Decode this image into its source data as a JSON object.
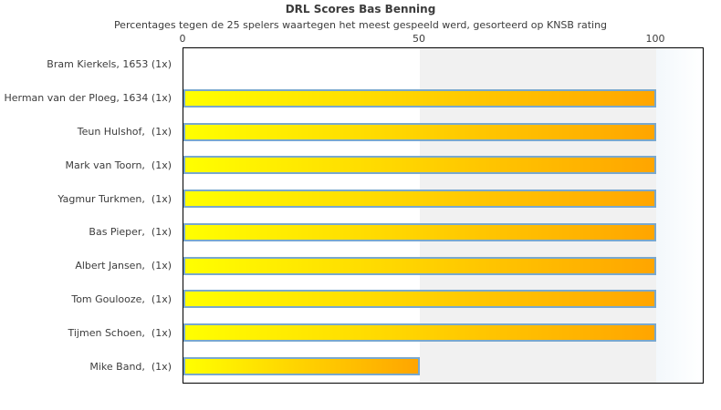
{
  "chart_data": {
    "type": "bar",
    "orientation": "horizontal",
    "title": "DRL Scores Bas Benning",
    "subtitle": "Percentages tegen de 25 spelers waartegen het meest gespeeld werd, gesorteerd op KNSB rating",
    "categories": [
      "Bram Kierkels, 1653 (1x)",
      "Herman van der Ploeg, 1634 (1x)",
      "Teun Hulshof,  (1x)",
      "Mark van Toorn,  (1x)",
      "Yagmur Turkmen,  (1x)",
      "Bas Pieper,  (1x)",
      "Albert Jansen,  (1x)",
      "Tom Goulooze,  (1x)",
      "Tijmen Schoen,  (1x)",
      "Mike Band,  (1x)"
    ],
    "values": [
      0,
      100,
      100,
      100,
      100,
      100,
      100,
      100,
      100,
      50
    ],
    "xlabel": "",
    "ylabel": "",
    "x_ticks": [
      "0",
      "50",
      "100"
    ],
    "xlim": [
      0,
      110
    ],
    "tick_position": "top",
    "grid": "off",
    "legend": "none",
    "background_bands": [
      {
        "from": 0,
        "to": 50,
        "color": "#ffffff"
      },
      {
        "from": 50,
        "to": 100,
        "color": "#f1f1f1"
      },
      {
        "from": 100,
        "to": 110,
        "color": "gradient #f3f8fc to #ffffff"
      }
    ],
    "colors": {
      "bar_gradient_start": "#ffff00",
      "bar_gradient_end": "#ffa500",
      "bar_border": "#79a8ce",
      "plot_border": "#000000",
      "band_mid": "#f1f1f1",
      "band_right": "#f3f8fc",
      "text": "#3c3c3c"
    }
  }
}
